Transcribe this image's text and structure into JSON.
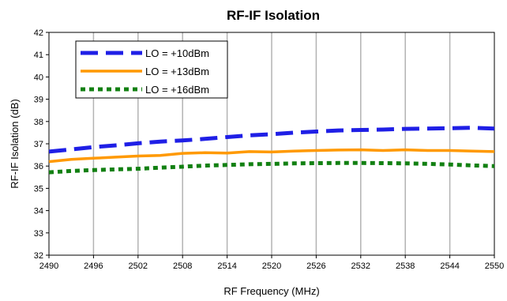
{
  "chart_data": {
    "type": "line",
    "title": "RF-IF Isolation",
    "xlabel": "RF Frequency (MHz)",
    "ylabel": "RF-IF Isolation (dB)",
    "xlim": [
      2490,
      2550
    ],
    "ylim": [
      32,
      42
    ],
    "xticks": [
      2490,
      2496,
      2502,
      2508,
      2514,
      2520,
      2526,
      2532,
      2538,
      2544,
      2550
    ],
    "yticks": [
      32,
      33,
      34,
      35,
      36,
      37,
      38,
      39,
      40,
      41,
      42
    ],
    "grid": "vertical",
    "legend_position": "top-left",
    "x": [
      2490,
      2493,
      2496,
      2499,
      2502,
      2505,
      2508,
      2511,
      2514,
      2517,
      2520,
      2523,
      2526,
      2529,
      2532,
      2535,
      2538,
      2541,
      2544,
      2547,
      2550
    ],
    "series": [
      {
        "name": "LO = +10dBm",
        "color": "#1f1fe6",
        "style": "dashed",
        "values": [
          36.65,
          36.75,
          36.85,
          36.93,
          37.02,
          37.1,
          37.15,
          37.22,
          37.3,
          37.38,
          37.43,
          37.5,
          37.55,
          37.6,
          37.62,
          37.64,
          37.67,
          37.68,
          37.7,
          37.72,
          37.68
        ]
      },
      {
        "name": "LO = +13dBm",
        "color": "#ff9900",
        "style": "solid",
        "values": [
          36.2,
          36.3,
          36.35,
          36.4,
          36.45,
          36.48,
          36.57,
          36.6,
          36.58,
          36.65,
          36.63,
          36.67,
          36.7,
          36.72,
          36.73,
          36.7,
          36.73,
          36.7,
          36.7,
          36.67,
          36.65
        ]
      },
      {
        "name": "LO = +16dBm",
        "color": "#128012",
        "style": "dotted",
        "values": [
          35.72,
          35.78,
          35.82,
          35.85,
          35.88,
          35.93,
          35.97,
          36.02,
          36.05,
          36.08,
          36.1,
          36.12,
          36.13,
          36.14,
          36.14,
          36.13,
          36.12,
          36.1,
          36.07,
          36.03,
          36.0
        ]
      }
    ]
  }
}
